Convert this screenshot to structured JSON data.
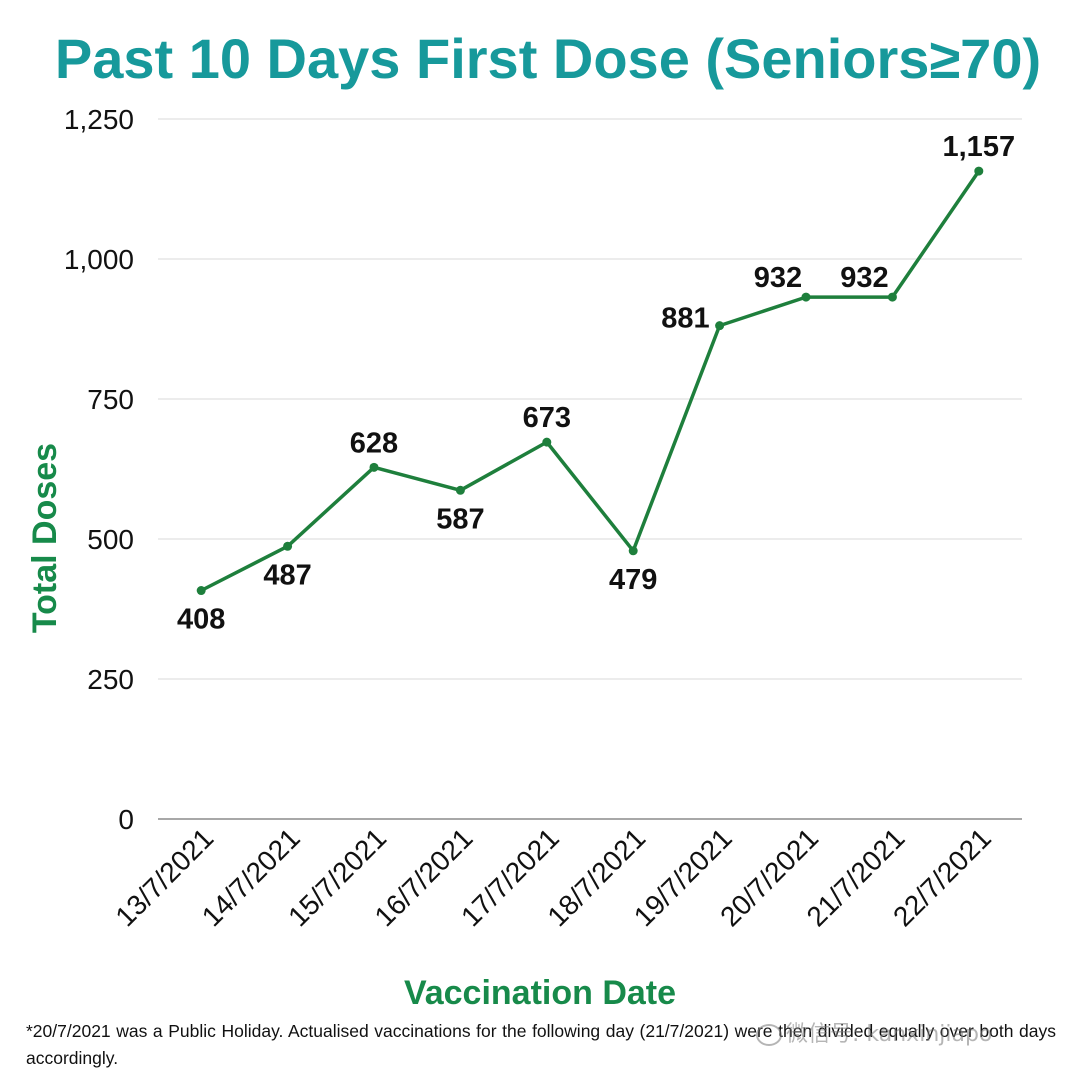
{
  "chart_data": {
    "type": "line",
    "title": "Past 10 Days First Dose (Seniors≥70)",
    "xlabel": "Vaccination Date",
    "ylabel": "Total Doses",
    "ylim": [
      0,
      1250
    ],
    "yticks": [
      0,
      250,
      500,
      750,
      1000,
      1250
    ],
    "ytick_labels": [
      "0",
      "250",
      "500",
      "750",
      "1,000",
      "1,250"
    ],
    "grid": true,
    "legend": "none",
    "categories": [
      "13/7/2021",
      "14/7/2021",
      "15/7/2021",
      "16/7/2021",
      "17/7/2021",
      "18/7/2021",
      "19/7/2021",
      "20/7/2021",
      "21/7/2021",
      "22/7/2021"
    ],
    "series": [
      {
        "values": [
          408,
          487,
          628,
          587,
          673,
          479,
          881,
          932,
          932,
          1157
        ],
        "data_labels": [
          "408",
          "487",
          "628",
          "587",
          "673",
          "479",
          "881",
          "932",
          "932",
          "1,157"
        ],
        "label_positions": [
          "below",
          "below",
          "above",
          "below",
          "above",
          "below",
          "left",
          "above-left",
          "above-left",
          "above"
        ],
        "color": "#1e7f3c"
      }
    ],
    "colors": {
      "title": "#17999b",
      "axis_label": "#178a4a",
      "line": "#1e7f3c",
      "grid": "#d9d9d9"
    }
  },
  "footnote": "*20/7/2021 was a Public Holiday. Actualised vaccinations for the following day (21/7/2021) were then divided equally over both days accordingly.",
  "watermark": "微信号: kanxinjiapo"
}
